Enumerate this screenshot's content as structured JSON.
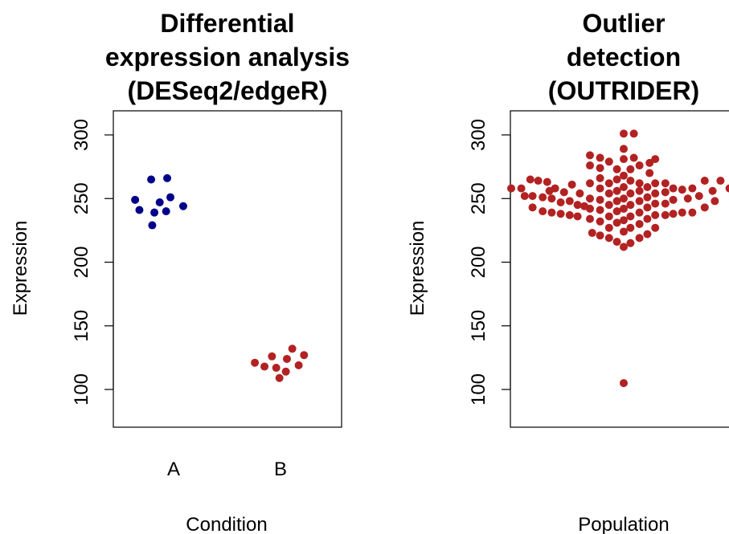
{
  "chart_data": [
    {
      "type": "scatter",
      "title": [
        "Differential",
        "expression analysis",
        "(DESeq2/edgeR)"
      ],
      "xlabel": "Condition",
      "ylabel": "Expression",
      "ylim": [
        87,
        320
      ],
      "y_ticks": [
        100,
        150,
        200,
        250,
        300
      ],
      "categories": [
        "A",
        "B"
      ],
      "series": [
        {
          "category": "A",
          "color": "#00008B",
          "points": [
            {
              "x": 0.64,
              "y": 249
            },
            {
              "x": 0.79,
              "y": 265
            },
            {
              "x": 0.94,
              "y": 266
            },
            {
              "x": 0.68,
              "y": 241
            },
            {
              "x": 0.82,
              "y": 239
            },
            {
              "x": 0.87,
              "y": 247
            },
            {
              "x": 0.93,
              "y": 240
            },
            {
              "x": 0.97,
              "y": 251
            },
            {
              "x": 1.09,
              "y": 244
            },
            {
              "x": 0.8,
              "y": 229
            }
          ]
        },
        {
          "category": "B",
          "color": "#B22222",
          "points": [
            {
              "x": 1.76,
              "y": 121
            },
            {
              "x": 1.85,
              "y": 118
            },
            {
              "x": 1.92,
              "y": 126
            },
            {
              "x": 1.96,
              "y": 117
            },
            {
              "x": 2.06,
              "y": 124
            },
            {
              "x": 2.11,
              "y": 132
            },
            {
              "x": 2.05,
              "y": 114
            },
            {
              "x": 2.17,
              "y": 119
            },
            {
              "x": 2.22,
              "y": 127
            },
            {
              "x": 1.99,
              "y": 109
            }
          ]
        }
      ]
    },
    {
      "type": "scatter",
      "title": [
        "Outlier",
        "detection",
        "(OUTRIDER)"
      ],
      "xlabel": "Population",
      "ylabel": "Expression",
      "ylim": [
        87,
        320
      ],
      "y_ticks": [
        100,
        150,
        200,
        250,
        300
      ],
      "series": [
        {
          "color": "#B22222",
          "points": [
            {
              "x": -1.0,
              "y": 258
            },
            {
              "x": -0.91,
              "y": 258
            },
            {
              "x": -0.83,
              "y": 265
            },
            {
              "x": -0.76,
              "y": 264
            },
            {
              "x": -0.68,
              "y": 263
            },
            {
              "x": -0.61,
              "y": 258
            },
            {
              "x": -0.53,
              "y": 255
            },
            {
              "x": -0.46,
              "y": 261
            },
            {
              "x": -0.39,
              "y": 254
            },
            {
              "x": -0.81,
              "y": 252
            },
            {
              "x": -0.72,
              "y": 251
            },
            {
              "x": -0.64,
              "y": 250
            },
            {
              "x": -0.56,
              "y": 247
            },
            {
              "x": -0.48,
              "y": 248
            },
            {
              "x": -0.41,
              "y": 245
            },
            {
              "x": -0.81,
              "y": 243
            },
            {
              "x": -0.72,
              "y": 240
            },
            {
              "x": -0.64,
              "y": 239
            },
            {
              "x": -0.56,
              "y": 238
            },
            {
              "x": -0.48,
              "y": 237
            },
            {
              "x": -0.41,
              "y": 236
            },
            {
              "x": -0.35,
              "y": 244
            },
            {
              "x": -0.3,
              "y": 284
            },
            {
              "x": -0.3,
              "y": 276
            },
            {
              "x": -0.3,
              "y": 262
            },
            {
              "x": -0.3,
              "y": 250
            },
            {
              "x": -0.3,
              "y": 242
            },
            {
              "x": -0.3,
              "y": 234
            },
            {
              "x": -0.28,
              "y": 223
            },
            {
              "x": -0.21,
              "y": 282
            },
            {
              "x": -0.21,
              "y": 274
            },
            {
              "x": -0.21,
              "y": 266
            },
            {
              "x": -0.21,
              "y": 258
            },
            {
              "x": -0.21,
              "y": 249
            },
            {
              "x": -0.21,
              "y": 241
            },
            {
              "x": -0.21,
              "y": 232
            },
            {
              "x": -0.21,
              "y": 221
            },
            {
              "x": -0.13,
              "y": 279
            },
            {
              "x": -0.13,
              "y": 262
            },
            {
              "x": -0.13,
              "y": 254
            },
            {
              "x": -0.13,
              "y": 245
            },
            {
              "x": -0.13,
              "y": 236
            },
            {
              "x": -0.13,
              "y": 227
            },
            {
              "x": -0.13,
              "y": 219
            },
            {
              "x": -0.06,
              "y": 273
            },
            {
              "x": -0.06,
              "y": 265
            },
            {
              "x": -0.06,
              "y": 256
            },
            {
              "x": -0.06,
              "y": 248
            },
            {
              "x": -0.06,
              "y": 240
            },
            {
              "x": -0.06,
              "y": 231
            },
            {
              "x": -0.06,
              "y": 216
            },
            {
              "x": 0.0,
              "y": 301
            },
            {
              "x": 0.0,
              "y": 289
            },
            {
              "x": 0.0,
              "y": 281
            },
            {
              "x": 0.0,
              "y": 268
            },
            {
              "x": 0.0,
              "y": 259
            },
            {
              "x": 0.0,
              "y": 250
            },
            {
              "x": 0.0,
              "y": 242
            },
            {
              "x": 0.0,
              "y": 233
            },
            {
              "x": 0.0,
              "y": 224
            },
            {
              "x": 0.0,
              "y": 212
            },
            {
              "x": 0.0,
              "y": 105
            },
            {
              "x": 0.09,
              "y": 301
            },
            {
              "x": 0.09,
              "y": 282
            },
            {
              "x": 0.06,
              "y": 273
            },
            {
              "x": 0.06,
              "y": 264
            },
            {
              "x": 0.06,
              "y": 254
            },
            {
              "x": 0.06,
              "y": 245
            },
            {
              "x": 0.06,
              "y": 236
            },
            {
              "x": 0.06,
              "y": 227
            },
            {
              "x": 0.06,
              "y": 215
            },
            {
              "x": 0.14,
              "y": 276
            },
            {
              "x": 0.14,
              "y": 262
            },
            {
              "x": 0.14,
              "y": 256
            },
            {
              "x": 0.14,
              "y": 248
            },
            {
              "x": 0.14,
              "y": 239
            },
            {
              "x": 0.14,
              "y": 230
            },
            {
              "x": 0.14,
              "y": 219
            },
            {
              "x": 0.23,
              "y": 278
            },
            {
              "x": 0.23,
              "y": 270
            },
            {
              "x": 0.21,
              "y": 259
            },
            {
              "x": 0.21,
              "y": 251
            },
            {
              "x": 0.21,
              "y": 243
            },
            {
              "x": 0.21,
              "y": 234
            },
            {
              "x": 0.21,
              "y": 222
            },
            {
              "x": 0.28,
              "y": 281
            },
            {
              "x": 0.28,
              "y": 262
            },
            {
              "x": 0.28,
              "y": 254
            },
            {
              "x": 0.28,
              "y": 246
            },
            {
              "x": 0.28,
              "y": 237
            },
            {
              "x": 0.28,
              "y": 227
            },
            {
              "x": 0.37,
              "y": 262
            },
            {
              "x": 0.37,
              "y": 255
            },
            {
              "x": 0.37,
              "y": 246
            },
            {
              "x": 0.37,
              "y": 237
            },
            {
              "x": 0.44,
              "y": 258
            },
            {
              "x": 0.44,
              "y": 249
            },
            {
              "x": 0.44,
              "y": 238
            },
            {
              "x": 0.52,
              "y": 257
            },
            {
              "x": 0.52,
              "y": 239
            },
            {
              "x": 0.57,
              "y": 250
            },
            {
              "x": 0.61,
              "y": 258
            },
            {
              "x": 0.61,
              "y": 239
            },
            {
              "x": 0.67,
              "y": 252
            },
            {
              "x": 0.72,
              "y": 264
            },
            {
              "x": 0.72,
              "y": 243
            },
            {
              "x": 0.79,
              "y": 256
            },
            {
              "x": 0.86,
              "y": 264
            },
            {
              "x": 0.94,
              "y": 258
            },
            {
              "x": -0.88,
              "y": 252
            },
            {
              "x": -0.66,
              "y": 256
            },
            {
              "x": 0.81,
              "y": 248
            }
          ]
        }
      ]
    }
  ]
}
